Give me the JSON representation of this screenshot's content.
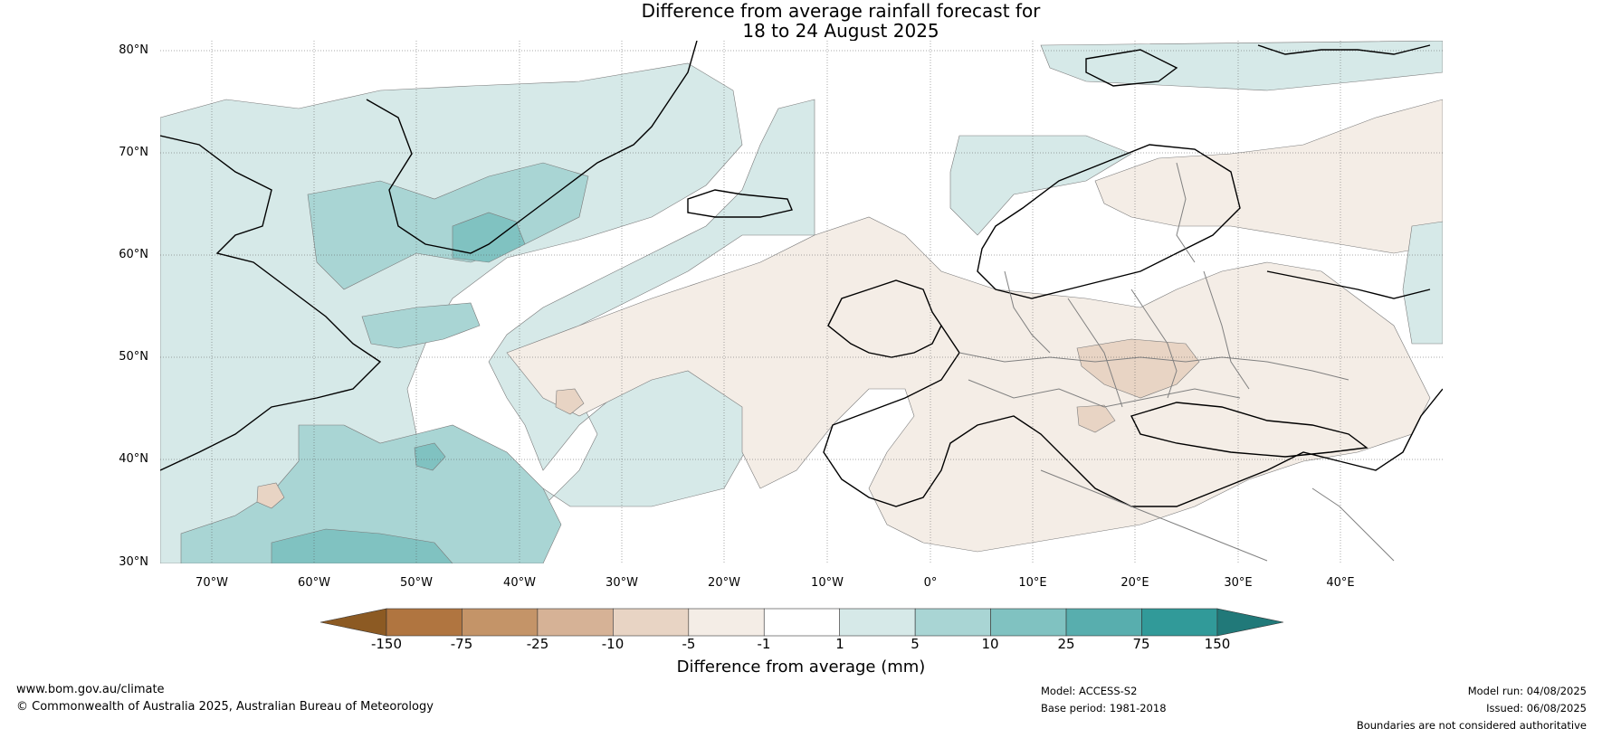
{
  "title": {
    "line1": "Difference from average rainfall forecast for",
    "line2": "18 to 24 August 2025"
  },
  "latitude_labels": [
    "80°N",
    "70°N",
    "60°N",
    "50°N",
    "40°N",
    "30°N"
  ],
  "longitude_labels": [
    "70°W",
    "60°W",
    "50°W",
    "40°W",
    "30°W",
    "20°W",
    "10°W",
    "0°",
    "10°E",
    "20°E",
    "30°E",
    "40°E"
  ],
  "colorbar": {
    "ticks": [
      "-150",
      "-75",
      "-25",
      "-10",
      "-5",
      "-1",
      "1",
      "5",
      "10",
      "25",
      "75",
      "150"
    ],
    "colors": [
      "#8c5a23",
      "#b07540",
      "#c49468",
      "#d6b296",
      "#e8d4c4",
      "#f4ede6",
      "#ffffff",
      "#d6e9e8",
      "#a9d5d4",
      "#80c2c1",
      "#58aeae",
      "#319a99",
      "#217979"
    ],
    "label": "Difference from average (mm)"
  },
  "footer": {
    "website": "www.bom.gov.au/climate",
    "copyright": "© Commonwealth of Australia 2025, Australian Bureau of Meteorology",
    "model": "Model: ACCESS-S2",
    "base_period": "Base period: 1981-2018",
    "model_run": "Model run: 04/08/2025",
    "issued": "Issued: 06/08/2025",
    "disclaimer": "Boundaries are not considered authoritative"
  }
}
